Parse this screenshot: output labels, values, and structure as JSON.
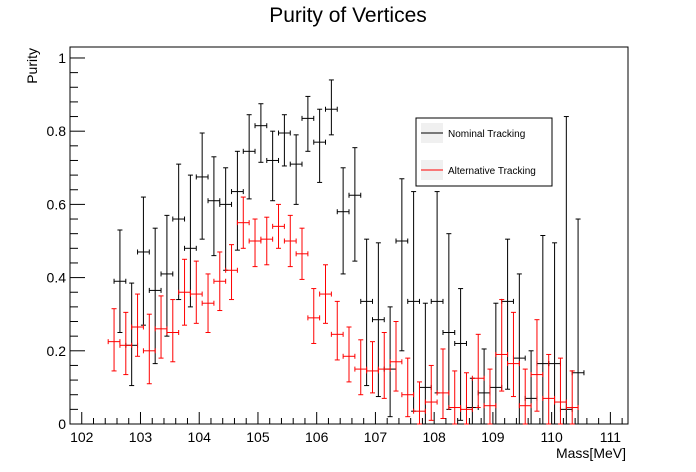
{
  "chart_data": {
    "type": "scatter",
    "title": "Purity of Vertices",
    "xlabel": "Mass[MeV]",
    "ylabel": "Purity",
    "xlim": [
      101.8,
      111.3
    ],
    "ylim": [
      0,
      1.03
    ],
    "x_ticks": [
      102,
      103,
      104,
      105,
      106,
      107,
      108,
      109,
      110,
      111
    ],
    "y_ticks": [
      0,
      0.2,
      0.4,
      0.6,
      0.8,
      1
    ],
    "y_tick_labels": [
      "0",
      "0.2",
      "0.4",
      "0.6",
      "0.8",
      "1"
    ],
    "grid": false,
    "legend_position": "top-right",
    "bin_half_width": 0.1,
    "series": [
      {
        "name": "Nominal Tracking",
        "color": "#000000",
        "x": [
          102.65,
          102.85,
          103.05,
          103.25,
          103.45,
          103.65,
          103.85,
          104.05,
          104.25,
          104.45,
          104.65,
          104.85,
          105.05,
          105.25,
          105.45,
          105.65,
          105.85,
          106.05,
          106.25,
          106.45,
          106.65,
          106.85,
          107.05,
          107.25,
          107.45,
          107.65,
          107.85,
          108.05,
          108.25,
          108.45,
          108.65,
          108.85,
          109.05,
          109.25,
          109.45,
          109.65,
          109.85,
          110.05,
          110.25,
          110.45
        ],
        "y": [
          0.39,
          0.215,
          0.47,
          0.365,
          0.41,
          0.56,
          0.48,
          0.675,
          0.61,
          0.6,
          0.635,
          0.745,
          0.815,
          0.72,
          0.795,
          0.71,
          0.835,
          0.77,
          0.86,
          0.58,
          0.625,
          0.335,
          0.285,
          0.15,
          0.5,
          0.335,
          0.1,
          0.335,
          0.25,
          0.22,
          0.045,
          0.085,
          0.1,
          0.335,
          0.18,
          0.07,
          0.165,
          0.165,
          0.04,
          0.14
        ],
        "err_low": [
          0.14,
          0.11,
          0.2,
          0.2,
          0.17,
          0.22,
          0.16,
          0.17,
          0.15,
          0.18,
          0.16,
          0.13,
          0.1,
          0.11,
          0.09,
          0.11,
          0.09,
          0.11,
          0.07,
          0.17,
          0.18,
          0.23,
          0.21,
          0.13,
          0.3,
          0.3,
          0.1,
          0.25,
          0.21,
          0.21,
          0.045,
          0.085,
          0.1,
          0.24,
          0.18,
          0.07,
          0.165,
          0.165,
          0.04,
          0.14
        ],
        "err_high": [
          0.14,
          0.17,
          0.15,
          0.17,
          0.16,
          0.15,
          0.2,
          0.12,
          0.12,
          0.1,
          0.11,
          0.1,
          0.06,
          0.08,
          0.05,
          0.08,
          0.06,
          0.09,
          0.08,
          0.12,
          0.13,
          0.17,
          0.21,
          0.17,
          0.17,
          0.3,
          0.23,
          0.3,
          0.27,
          0.15,
          0.08,
          0.12,
          0.23,
          0.17,
          0.23,
          0.13,
          0.35,
          0.33,
          0.8,
          0.42
        ]
      },
      {
        "name": "Alternative Tracking",
        "color": "#ff0000",
        "x": [
          102.55,
          102.75,
          102.95,
          103.15,
          103.35,
          103.55,
          103.75,
          103.95,
          104.15,
          104.35,
          104.55,
          104.75,
          104.95,
          105.15,
          105.35,
          105.55,
          105.75,
          105.95,
          106.15,
          106.35,
          106.55,
          106.75,
          106.95,
          107.15,
          107.35,
          107.55,
          107.75,
          107.95,
          108.15,
          108.35,
          108.55,
          108.75,
          108.95,
          109.15,
          109.35,
          109.55,
          109.75,
          109.95,
          110.15,
          110.35
        ],
        "y": [
          0.225,
          0.215,
          0.265,
          0.2,
          0.26,
          0.25,
          0.36,
          0.355,
          0.33,
          0.39,
          0.42,
          0.55,
          0.5,
          0.505,
          0.54,
          0.5,
          0.465,
          0.29,
          0.355,
          0.245,
          0.185,
          0.15,
          0.145,
          0.15,
          0.17,
          0.08,
          0.035,
          0.06,
          0.085,
          0.045,
          0.04,
          0.125,
          0.05,
          0.19,
          0.165,
          0.05,
          0.135,
          0.07,
          0.06,
          0.045
        ],
        "err_low": [
          0.08,
          0.08,
          0.08,
          0.09,
          0.08,
          0.08,
          0.09,
          0.08,
          0.08,
          0.08,
          0.08,
          0.07,
          0.07,
          0.07,
          0.06,
          0.07,
          0.07,
          0.07,
          0.08,
          0.07,
          0.07,
          0.07,
          0.06,
          0.08,
          0.08,
          0.06,
          0.035,
          0.05,
          0.07,
          0.045,
          0.04,
          0.08,
          0.05,
          0.1,
          0.09,
          0.05,
          0.1,
          0.07,
          0.06,
          0.045
        ],
        "err_high": [
          0.09,
          0.09,
          0.09,
          0.1,
          0.09,
          0.09,
          0.09,
          0.09,
          0.08,
          0.08,
          0.07,
          0.07,
          0.06,
          0.06,
          0.06,
          0.07,
          0.07,
          0.08,
          0.08,
          0.09,
          0.08,
          0.08,
          0.08,
          0.1,
          0.11,
          0.1,
          0.08,
          0.1,
          0.12,
          0.1,
          0.1,
          0.12,
          0.1,
          0.15,
          0.14,
          0.1,
          0.15,
          0.12,
          0.12,
          0.1
        ]
      }
    ]
  }
}
